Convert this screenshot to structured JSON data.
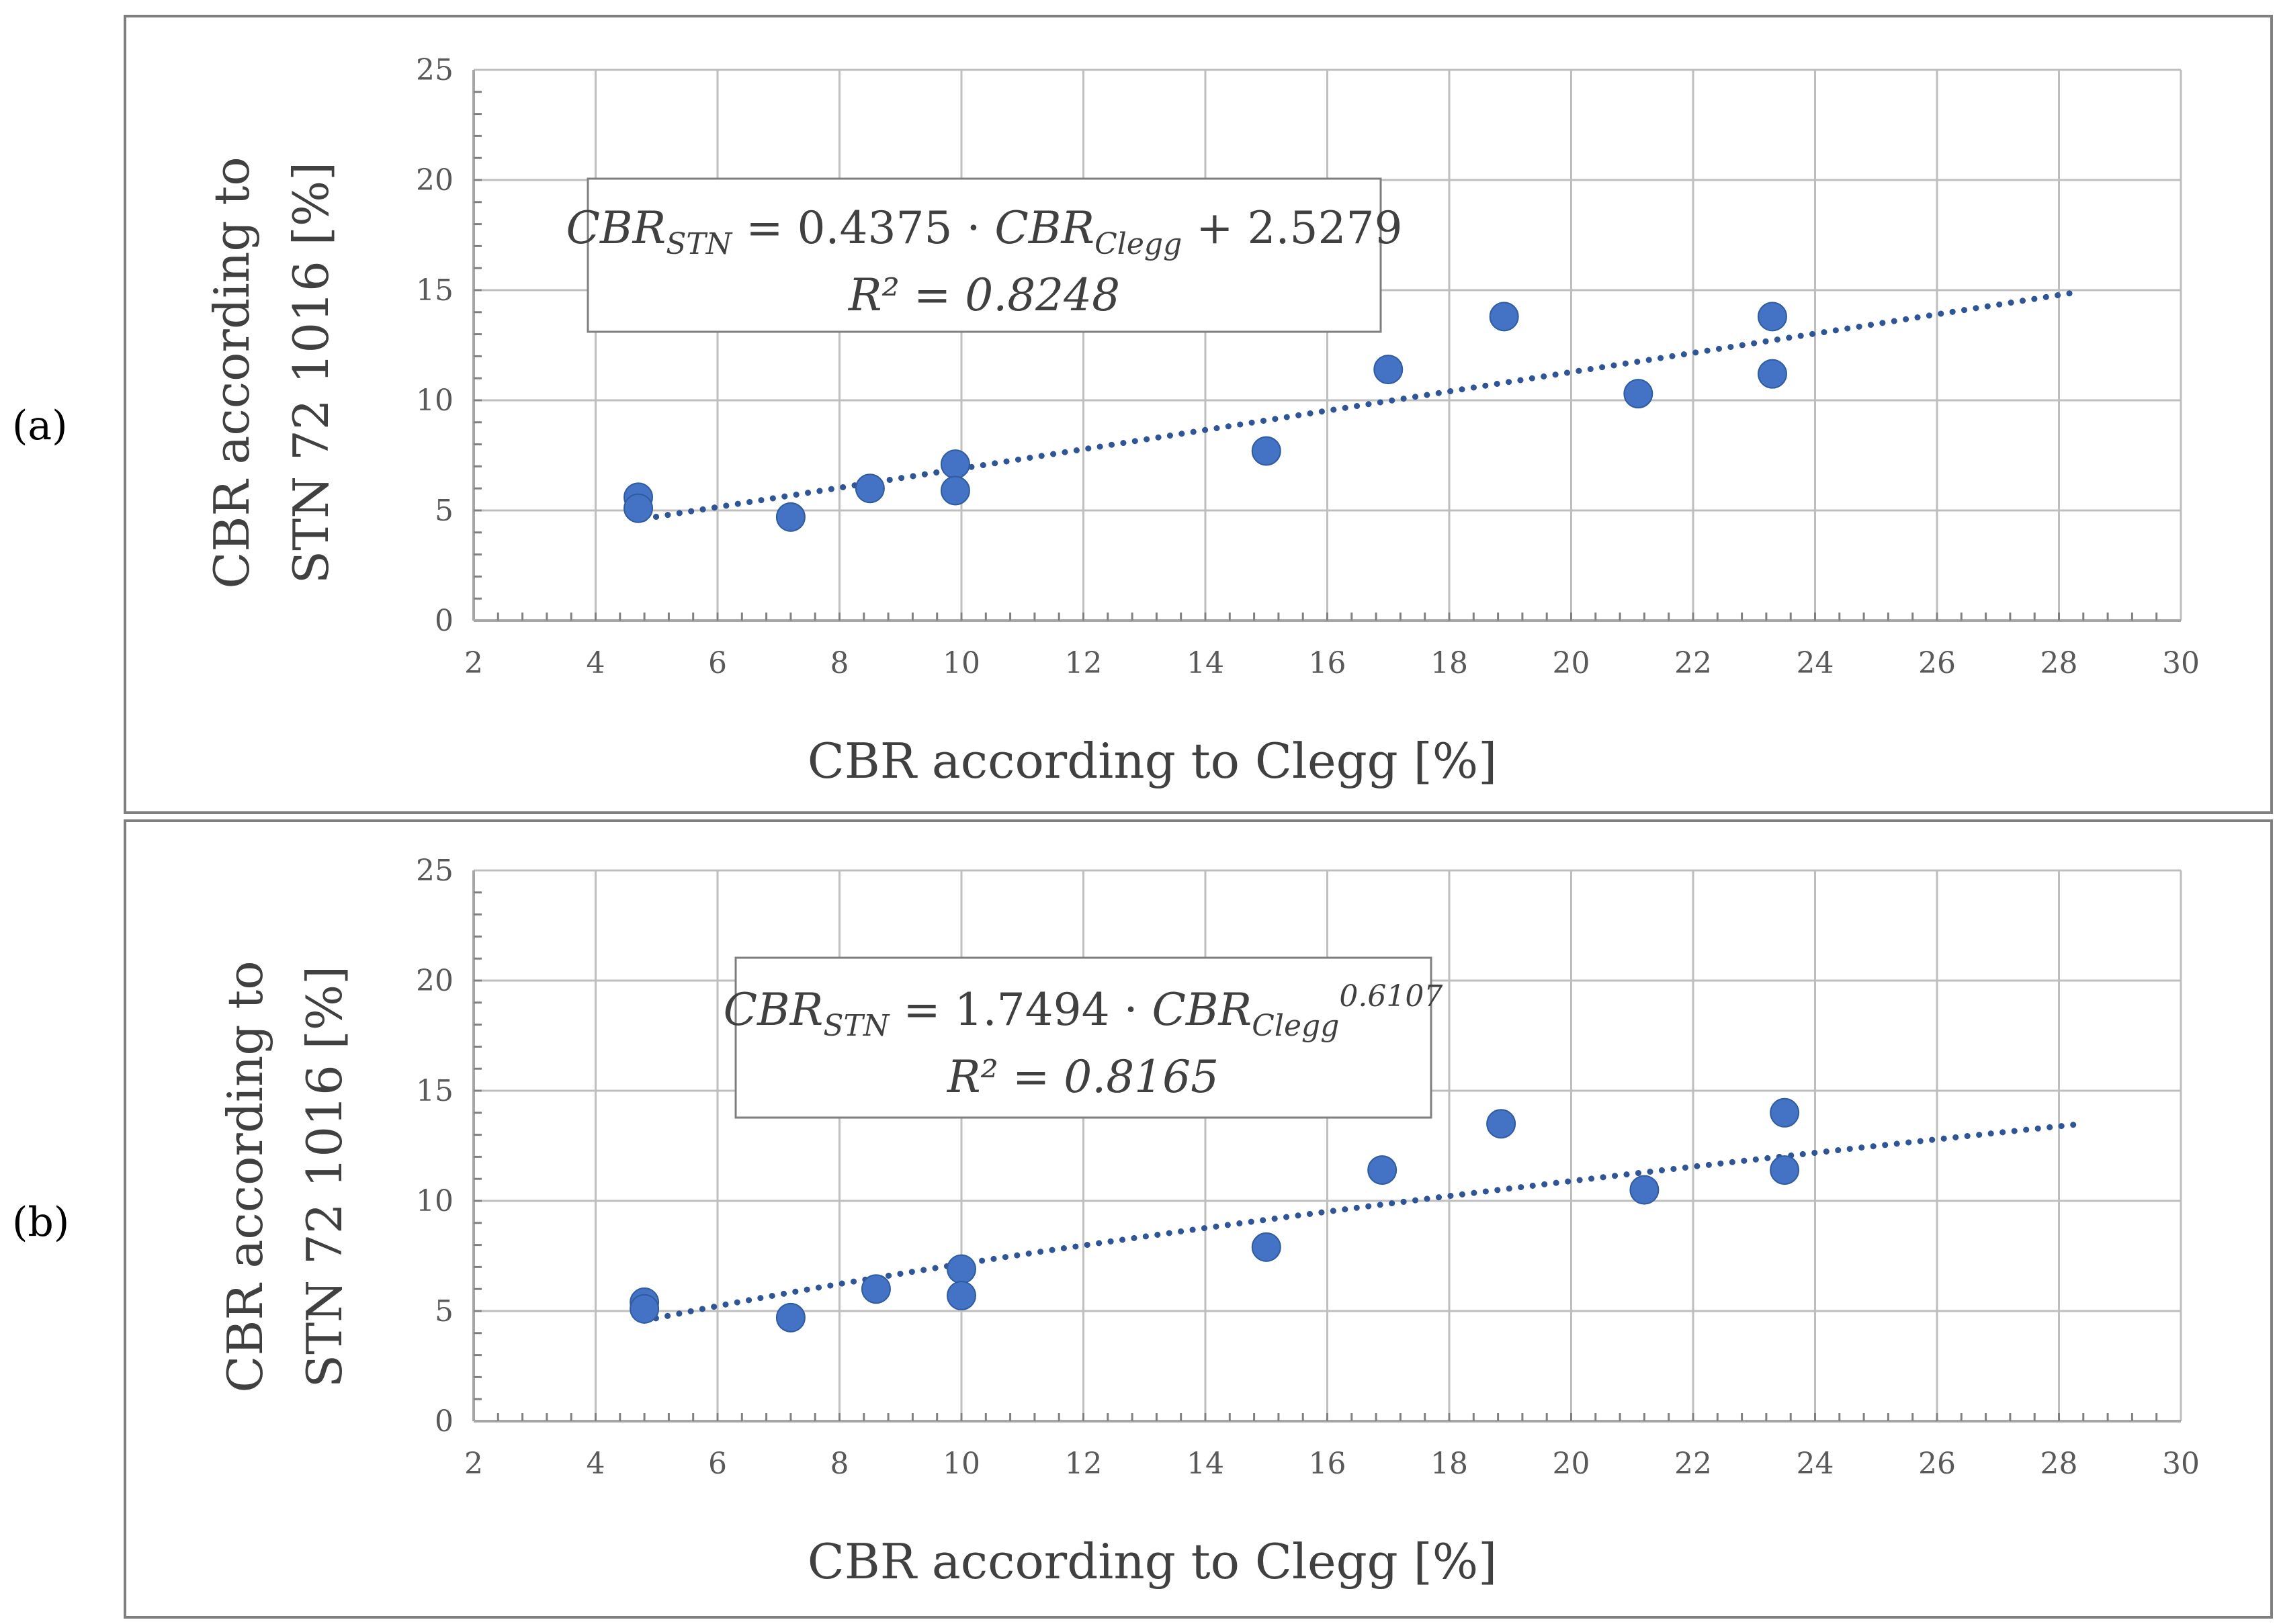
{
  "panel_labels": [
    "(a)",
    "(b)"
  ],
  "colors": {
    "point": "#4472C4",
    "trend": "#2F5597",
    "grid": "#BFBFBF",
    "axis": "#A6A6A6",
    "frame": "#7F7F7F"
  },
  "chart_data": [
    {
      "type": "scatter",
      "label": "(a)",
      "xlabel": "CBR according to Clegg [%]",
      "ylabel_lines": [
        "CBR according to",
        "STN 72 1016 [%]"
      ],
      "xlim": [
        2,
        30
      ],
      "ylim": [
        0,
        25
      ],
      "xticks": [
        2,
        4,
        6,
        8,
        10,
        12,
        14,
        16,
        18,
        20,
        22,
        24,
        26,
        28,
        30
      ],
      "yticks": [
        0,
        5,
        10,
        15,
        20,
        25
      ],
      "grid": true,
      "points": [
        {
          "x": 4.7,
          "y": 5.6
        },
        {
          "x": 4.7,
          "y": 5.1
        },
        {
          "x": 7.2,
          "y": 4.7
        },
        {
          "x": 8.5,
          "y": 6.0
        },
        {
          "x": 9.9,
          "y": 7.1
        },
        {
          "x": 9.9,
          "y": 5.9
        },
        {
          "x": 15.0,
          "y": 7.7
        },
        {
          "x": 17.0,
          "y": 11.4
        },
        {
          "x": 18.9,
          "y": 13.8
        },
        {
          "x": 21.1,
          "y": 10.3
        },
        {
          "x": 23.3,
          "y": 13.8
        },
        {
          "x": 23.3,
          "y": 11.2
        }
      ],
      "trendline": {
        "kind": "linear",
        "a": 0.4375,
        "b": 2.5279,
        "x_range": [
          4.8,
          28.2
        ]
      },
      "equation": {
        "lhs_main": "CBR",
        "lhs_sub": "STN",
        "eq": "=",
        "coef": "0.4375",
        "dot": "·",
        "rhs_main": "CBR",
        "rhs_sub": "Clegg",
        "tail": "+ 2.5279",
        "r2_label": "R² = 0.8248"
      }
    },
    {
      "type": "scatter",
      "label": "(b)",
      "xlabel": "CBR according to Clegg [%]",
      "ylabel_lines": [
        "CBR according to",
        "STN 72 1016 [%]"
      ],
      "xlim": [
        2,
        30
      ],
      "ylim": [
        0,
        25
      ],
      "xticks": [
        2,
        4,
        6,
        8,
        10,
        12,
        14,
        16,
        18,
        20,
        22,
        24,
        26,
        28,
        30
      ],
      "yticks": [
        0,
        5,
        10,
        15,
        20,
        25
      ],
      "grid": true,
      "points": [
        {
          "x": 4.8,
          "y": 5.4
        },
        {
          "x": 4.8,
          "y": 5.1
        },
        {
          "x": 7.2,
          "y": 4.7
        },
        {
          "x": 8.6,
          "y": 6.0
        },
        {
          "x": 10.0,
          "y": 6.9
        },
        {
          "x": 10.0,
          "y": 5.7
        },
        {
          "x": 15.0,
          "y": 7.9
        },
        {
          "x": 16.9,
          "y": 11.4
        },
        {
          "x": 18.85,
          "y": 13.5
        },
        {
          "x": 21.2,
          "y": 10.5
        },
        {
          "x": 23.5,
          "y": 14.0
        },
        {
          "x": 23.5,
          "y": 11.4
        }
      ],
      "trendline": {
        "kind": "power",
        "a": 1.7494,
        "b": 0.6107,
        "x_range": [
          4.8,
          28.3
        ]
      },
      "equation": {
        "lhs_main": "CBR",
        "lhs_sub": "STN",
        "eq": "=",
        "coef": "1.7494",
        "dot": "·",
        "rhs_main": "CBR",
        "rhs_sub": "Clegg",
        "sup": "0.6107",
        "r2_label": "R² = 0.8165"
      }
    }
  ]
}
